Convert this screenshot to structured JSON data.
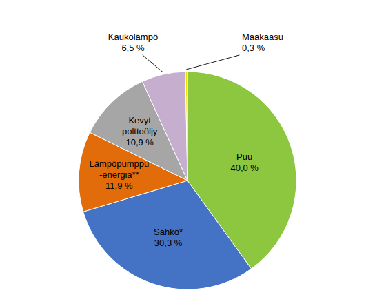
{
  "chart_data": {
    "type": "pie",
    "categories": [
      "Puu",
      "Sähkö*",
      "Lämpöpumppu\n-energia**",
      "Kevyt\npolttoöljy",
      "Kaukolämpö",
      "Maakaasu"
    ],
    "values": [
      40.0,
      30.3,
      11.9,
      10.9,
      6.5,
      0.3
    ],
    "value_labels": [
      "40,0 %",
      "30,3 %",
      "11,9 %",
      "10,9 %",
      "6,5 %",
      "0,3 %"
    ],
    "colors": [
      "#8DC63F",
      "#4472C4",
      "#E36C0A",
      "#A6A6A6",
      "#C6AECF",
      "#F0E000"
    ],
    "data_labels": true
  }
}
